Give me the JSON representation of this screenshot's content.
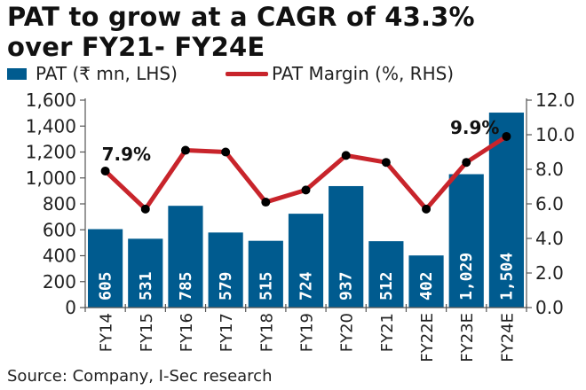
{
  "title_line1": "PAT to grow at a CAGR of 43.3%",
  "title_line2": "over FY21- FY24E",
  "legend": {
    "bar_label": "PAT (₹ mn, LHS)",
    "line_label": "PAT Margin (%, RHS)"
  },
  "source": "Source: Company, I-Sec research",
  "colors": {
    "bar": "#005b8f",
    "line": "#c8242b",
    "marker": "#000000"
  },
  "chart_data": {
    "type": "bar",
    "title": "PAT to grow at a CAGR of 43.3% over FY21- FY24E",
    "categories": [
      "FY14",
      "FY15",
      "FY16",
      "FY17",
      "FY18",
      "FY19",
      "FY20",
      "FY21",
      "FY22E",
      "FY23E",
      "FY24E"
    ],
    "series": [
      {
        "name": "PAT (₹ mn, LHS)",
        "type": "bar",
        "axis": "left",
        "values": [
          605,
          531,
          785,
          579,
          515,
          724,
          937,
          512,
          402,
          1029,
          1504
        ],
        "labels": [
          "605",
          "531",
          "785",
          "579",
          "515",
          "724",
          "937",
          "512",
          "402",
          "1,029",
          "1,504"
        ]
      },
      {
        "name": "PAT Margin (%, RHS)",
        "type": "line",
        "axis": "right",
        "values": [
          7.9,
          5.7,
          9.1,
          9.0,
          6.1,
          6.8,
          8.8,
          8.4,
          5.7,
          8.4,
          9.9
        ]
      }
    ],
    "left_axis": {
      "range": [
        0,
        1600
      ],
      "ticks": [
        0,
        200,
        400,
        600,
        800,
        1000,
        1200,
        1400,
        1600
      ],
      "tick_labels": [
        "0",
        "200",
        "400",
        "600",
        "800",
        "1,000",
        "1,200",
        "1,400",
        "1,600"
      ]
    },
    "right_axis": {
      "range": [
        0,
        12
      ],
      "ticks": [
        0,
        2,
        4,
        6,
        8,
        10,
        12
      ],
      "tick_labels": [
        "0.0",
        "2.0",
        "4.0",
        "6.0",
        "8.0",
        "10.0",
        "12.0"
      ]
    },
    "annotations": [
      {
        "category": "FY14",
        "text": "7.9%"
      },
      {
        "category": "FY24E",
        "text": "9.9%"
      }
    ],
    "xlabel": "",
    "ylabel": "",
    "y2label": "",
    "grid": false,
    "legend_position": "top"
  }
}
